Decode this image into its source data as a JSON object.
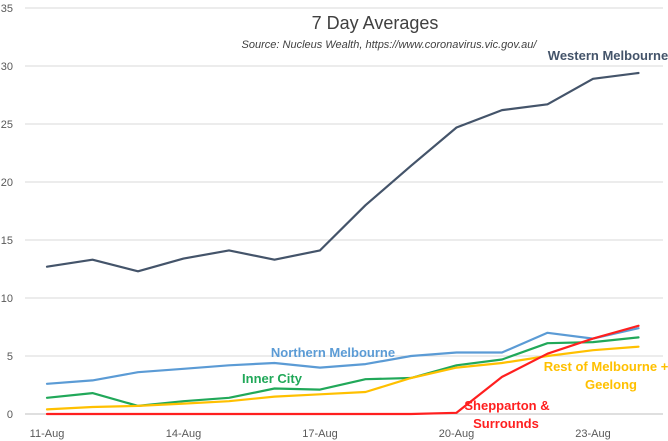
{
  "chart_data": {
    "type": "line",
    "title": "7 Day Averages",
    "subtitle": "Source: Nucleus Wealth, https://www.coronavirus.vic.gov.au/",
    "xlabel": "",
    "ylabel": "",
    "ylim": [
      0,
      35
    ],
    "yticks": [
      0,
      5,
      10,
      15,
      20,
      25,
      30,
      35
    ],
    "x_count": 14,
    "xtick_labels": [
      {
        "index": 0,
        "label": "11-Aug"
      },
      {
        "index": 3,
        "label": "14-Aug"
      },
      {
        "index": 6,
        "label": "17-Aug"
      },
      {
        "index": 9,
        "label": "20-Aug"
      },
      {
        "index": 12,
        "label": "23-Aug"
      }
    ],
    "grid": true,
    "series": [
      {
        "name": "Western Melbourne",
        "label_lines": [
          "Western Melbourne"
        ],
        "color": "#44546A",
        "values": [
          12.7,
          13.3,
          12.3,
          13.4,
          14.1,
          13.3,
          14.1,
          18.0,
          21.4,
          24.7,
          26.2,
          26.7,
          28.9,
          29.4
        ]
      },
      {
        "name": "Northern Melbourne",
        "label_lines": [
          "Northern Melbourne"
        ],
        "color": "#5B9BD5",
        "values": [
          2.6,
          2.9,
          3.6,
          3.9,
          4.2,
          4.4,
          4.0,
          4.3,
          5.0,
          5.3,
          5.3,
          7.0,
          6.5,
          7.4
        ]
      },
      {
        "name": "Inner City",
        "label_lines": [
          "Inner City"
        ],
        "color": "#21A859",
        "values": [
          1.4,
          1.8,
          0.7,
          1.1,
          1.4,
          2.2,
          2.1,
          3.0,
          3.1,
          4.2,
          4.7,
          6.1,
          6.2,
          6.6
        ]
      },
      {
        "name": "Rest of Melbourne + Geelong",
        "label_lines": [
          "Rest of Melbourne +",
          "Geelong"
        ],
        "color": "#FFC000",
        "values": [
          0.4,
          0.6,
          0.7,
          0.9,
          1.1,
          1.5,
          1.7,
          1.9,
          3.1,
          4.0,
          4.4,
          5.0,
          5.5,
          5.8
        ]
      },
      {
        "name": "Shepparton & Surrounds",
        "label_lines": [
          "Shepparton &",
          "Surrounds"
        ],
        "color": "#FF1F1F",
        "values": [
          0,
          0,
          0,
          0,
          0,
          0,
          0,
          0,
          0,
          0.1,
          3.2,
          5.2,
          6.5,
          7.6
        ]
      }
    ]
  }
}
